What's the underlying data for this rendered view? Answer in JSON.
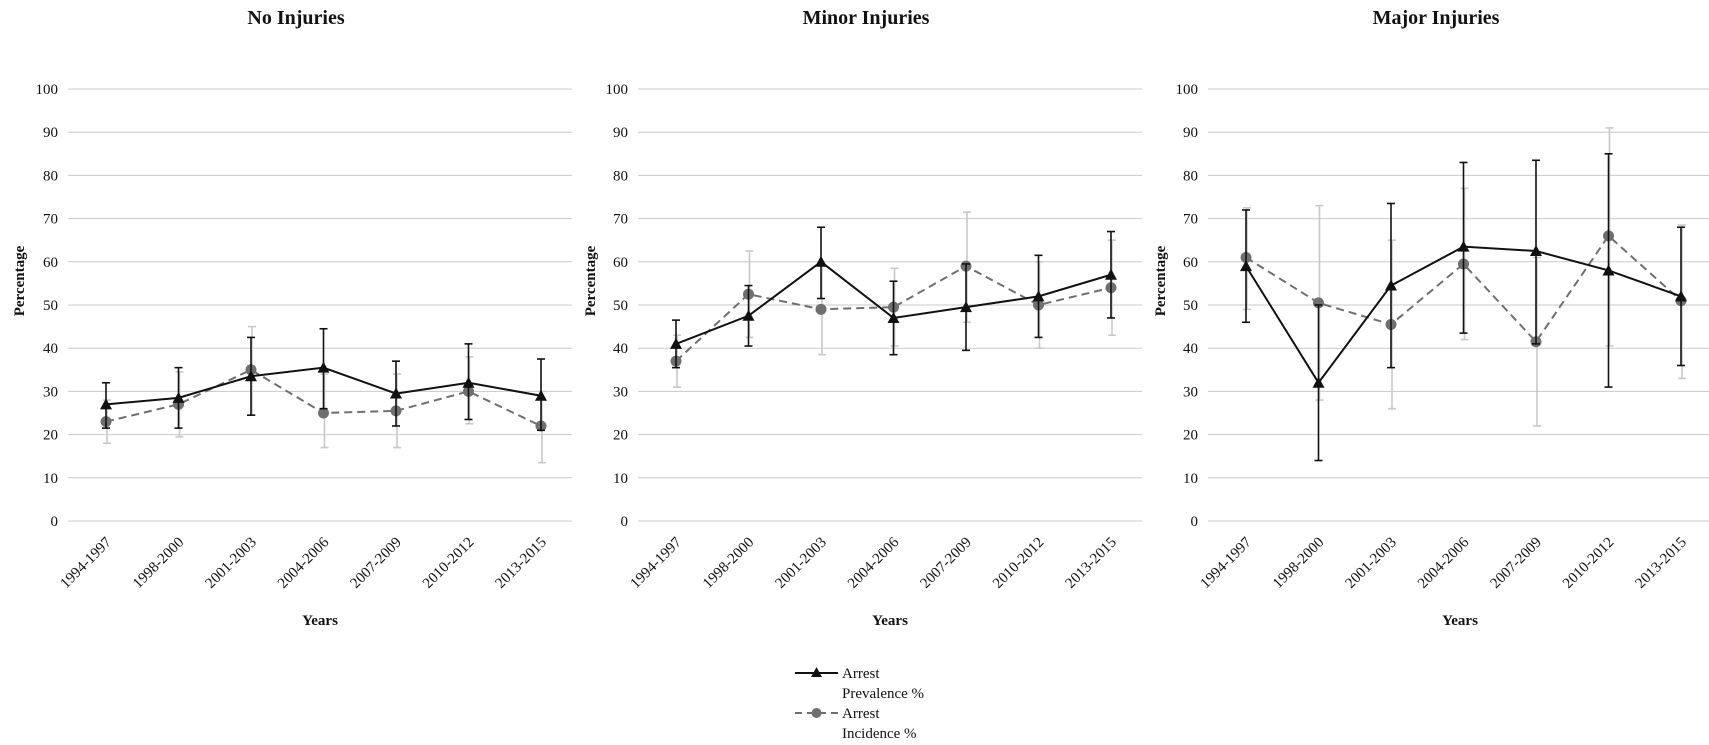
{
  "legend": {
    "prevalence_line1": "Arrest",
    "prevalence_line2": "Prevalence %",
    "incidence_line1": "Arrest",
    "incidence_line2": "Incidence %"
  },
  "colors": {
    "prevalence": "#111111",
    "incidence": "#6f6f6f",
    "incidence_error": "#c8c8c8",
    "grid": "#c9c9c9"
  },
  "chart_data": [
    {
      "type": "line",
      "title": "No Injuries",
      "xlabel": "Years",
      "ylabel": "Percentage",
      "ylim": [
        0,
        100
      ],
      "yticks": [
        0,
        10,
        20,
        30,
        40,
        50,
        60,
        70,
        80,
        90,
        100
      ],
      "grid": true,
      "legend_position": "bottom-center",
      "categories": [
        "1994-1997",
        "1998-2000",
        "2001-2003",
        "2004-2006",
        "2007-2009",
        "2010-2012",
        "2013-2015"
      ],
      "series": [
        {
          "name": "Arrest Prevalence %",
          "marker": "triangle",
          "style": "solid",
          "values": [
            27,
            28.5,
            33.5,
            35.5,
            29.5,
            32,
            29
          ],
          "error_low": [
            21.5,
            21.5,
            24.5,
            26,
            22,
            23.5,
            21
          ],
          "error_high": [
            32,
            35.5,
            42.5,
            44.5,
            37,
            41,
            37.5
          ]
        },
        {
          "name": "Arrest Incidence %",
          "marker": "circle",
          "style": "dashed",
          "values": [
            23,
            27,
            35,
            25,
            25.5,
            30,
            22
          ],
          "error_low": [
            18,
            19.5,
            24.5,
            17,
            17,
            22.5,
            13.5
          ],
          "error_high": [
            28,
            34.5,
            45,
            34,
            34,
            38,
            30
          ]
        }
      ]
    },
    {
      "type": "line",
      "title": "Minor Injuries",
      "xlabel": "Years",
      "ylabel": "Percentage",
      "ylim": [
        0,
        100
      ],
      "yticks": [
        0,
        10,
        20,
        30,
        40,
        50,
        60,
        70,
        80,
        90,
        100
      ],
      "grid": true,
      "legend_position": "bottom-center",
      "categories": [
        "1994-1997",
        "1998-2000",
        "2001-2003",
        "2004-2006",
        "2007-2009",
        "2010-2012",
        "2013-2015"
      ],
      "series": [
        {
          "name": "Arrest Prevalence %",
          "marker": "triangle",
          "style": "solid",
          "values": [
            41,
            47.5,
            60,
            47,
            49.5,
            52,
            57
          ],
          "error_low": [
            35.5,
            40.5,
            51.5,
            38.5,
            39.5,
            42.5,
            47
          ],
          "error_high": [
            46.5,
            54.5,
            68,
            55.5,
            59.5,
            61.5,
            67
          ]
        },
        {
          "name": "Arrest Incidence %",
          "marker": "circle",
          "style": "dashed",
          "values": [
            37,
            52.5,
            49,
            49.5,
            59,
            50,
            54
          ],
          "error_low": [
            31,
            42.5,
            38.5,
            40.5,
            46,
            40,
            43
          ],
          "error_high": [
            43,
            62.5,
            59,
            58.5,
            71.5,
            60,
            65
          ]
        }
      ]
    },
    {
      "type": "line",
      "title": "Major Injuries",
      "xlabel": "Years",
      "ylabel": "Percentage",
      "ylim": [
        0,
        100
      ],
      "yticks": [
        0,
        10,
        20,
        30,
        40,
        50,
        60,
        70,
        80,
        90,
        100
      ],
      "grid": true,
      "legend_position": "bottom-center",
      "categories": [
        "1994-1997",
        "1998-2000",
        "2001-2003",
        "2004-2006",
        "2007-2009",
        "2010-2012",
        "2013-2015"
      ],
      "series": [
        {
          "name": "Arrest Prevalence %",
          "marker": "triangle",
          "style": "solid",
          "values": [
            59,
            32,
            54.5,
            63.5,
            62.5,
            58,
            52
          ],
          "error_low": [
            46,
            14,
            35.5,
            43.5,
            41,
            31,
            36
          ],
          "error_high": [
            72,
            50,
            73.5,
            83,
            83.5,
            85,
            68
          ]
        },
        {
          "name": "Arrest Incidence %",
          "marker": "circle",
          "style": "dashed",
          "values": [
            61,
            50.5,
            45.5,
            59.5,
            41.5,
            66,
            51
          ],
          "error_low": [
            49,
            28,
            26,
            42,
            22,
            40.5,
            33
          ],
          "error_high": [
            72.5,
            73,
            65,
            77,
            61,
            91,
            68.5
          ]
        }
      ]
    }
  ]
}
